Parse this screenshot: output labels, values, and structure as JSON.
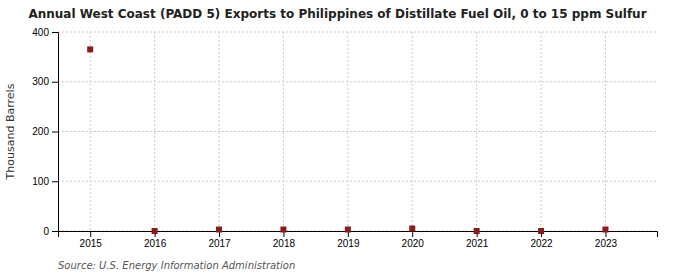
{
  "chart_data": {
    "type": "scatter",
    "title": "Annual West Coast (PADD 5) Exports to Philippines of Distillate Fuel Oil, 0 to 15 ppm Sulfur",
    "ylabel": "Thousand Barrels",
    "source": "Source: U.S. Energy Information Administration",
    "x": [
      2015,
      2016,
      2017,
      2018,
      2019,
      2020,
      2021,
      2022,
      2023
    ],
    "values": [
      365,
      0,
      3,
      3,
      3,
      5,
      0,
      0,
      3
    ],
    "color": "#8B1A1A",
    "marker": "square",
    "xlim": [
      2014.5,
      2023.8
    ],
    "xticks": [
      2015,
      2016,
      2017,
      2018,
      2019,
      2020,
      2021,
      2022,
      2023
    ],
    "ylim": [
      0,
      400
    ],
    "yticks": [
      0,
      100,
      200,
      300,
      400
    ],
    "grid": true
  }
}
